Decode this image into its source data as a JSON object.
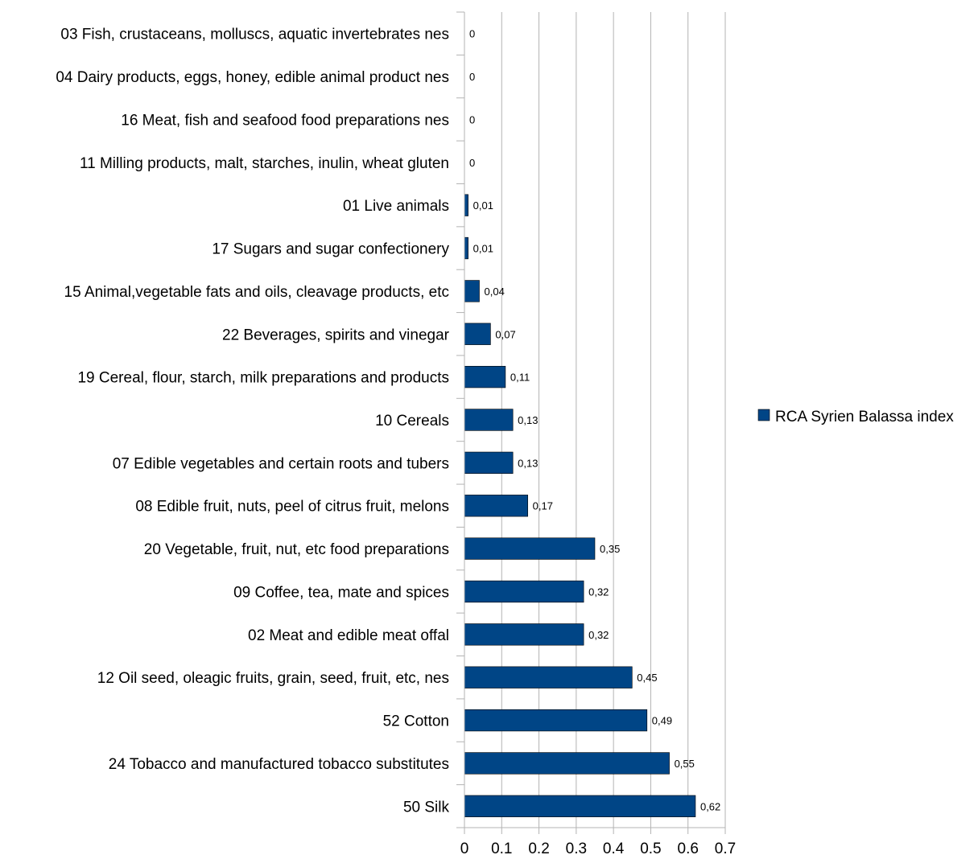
{
  "chart_data": {
    "type": "bar",
    "orientation": "horizontal",
    "title": "",
    "xlabel": "",
    "ylabel": "",
    "xlim": [
      0,
      0.7
    ],
    "xticks": [
      0,
      0.1,
      0.2,
      0.3,
      0.4,
      0.5,
      0.6,
      0.7
    ],
    "xtick_labels": [
      "0",
      "0.1",
      "0.2",
      "0.3",
      "0.4",
      "0.5",
      "0.6",
      "0.7"
    ],
    "grid": "vertical",
    "legend_position": "right",
    "bar_color": "#004586",
    "categories": [
      "03 Fish, crustaceans, molluscs, aquatic invertebrates nes",
      "04 Dairy products, eggs, honey, edible animal product nes",
      "16 Meat, fish and seafood food preparations nes",
      "11 Milling products, malt, starches, inulin, wheat gluten",
      "01 Live animals",
      "17 Sugars and sugar confectionery",
      "15 Animal,vegetable fats and oils, cleavage products, etc",
      "22 Beverages, spirits and vinegar",
      "19 Cereal, flour, starch, milk preparations and products",
      "10 Cereals",
      "07 Edible vegetables and certain roots and tubers",
      "08 Edible fruit, nuts, peel of citrus fruit, melons",
      "20 Vegetable, fruit, nut, etc food preparations",
      "09 Coffee, tea, mate and spices",
      "02 Meat and edible meat offal",
      "12 Oil seed, oleagic fruits, grain, seed, fruit, etc, nes",
      "52 Cotton",
      "24 Tobacco and manufactured tobacco substitutes",
      "50 Silk"
    ],
    "series": [
      {
        "name": "RCA Syrien Balassa index",
        "values": [
          0,
          0,
          0,
          0,
          0.01,
          0.01,
          0.04,
          0.07,
          0.11,
          0.13,
          0.13,
          0.17,
          0.35,
          0.32,
          0.32,
          0.45,
          0.49,
          0.55,
          0.62
        ],
        "data_labels": [
          "0",
          "0",
          "0",
          "0",
          "0,01",
          "0,01",
          "0,04",
          "0,07",
          "0,11",
          "0,13",
          "0,13",
          "0,17",
          "0,35",
          "0,32",
          "0,32",
          "0,45",
          "0,49",
          "0,55",
          "0,62"
        ]
      }
    ]
  }
}
